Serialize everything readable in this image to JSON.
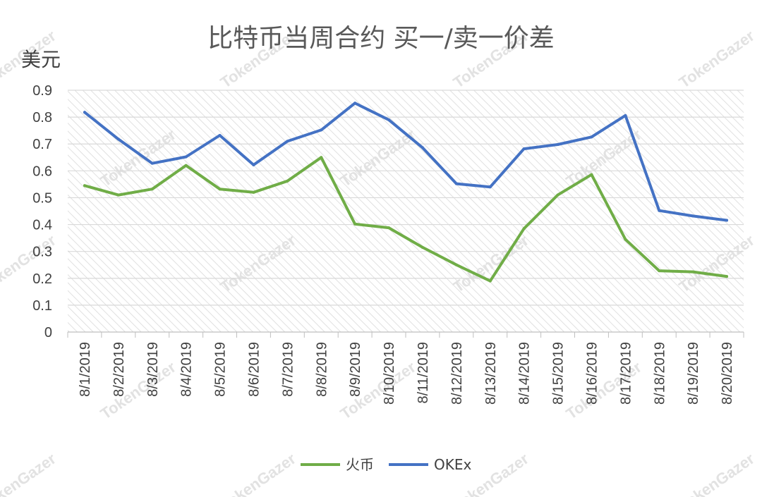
{
  "watermark": "TokenGazer",
  "chart_data": {
    "type": "line",
    "title": "比特币当周合约 买一/卖一价差",
    "ylabel": "美元",
    "xlabel": "",
    "ylim": [
      0,
      0.9
    ],
    "yticks": [
      "0",
      "0.1",
      "0.2",
      "0.3",
      "0.4",
      "0.5",
      "0.6",
      "0.7",
      "0.8",
      "0.9"
    ],
    "grid": true,
    "legend_position": "bottom",
    "categories": [
      "8/1/2019",
      "8/2/2019",
      "8/3/2019",
      "8/4/2019",
      "8/5/2019",
      "8/6/2019",
      "8/7/2019",
      "8/8/2019",
      "8/9/2019",
      "8/10/2019",
      "8/11/2019",
      "8/12/2019",
      "8/13/2019",
      "8/14/2019",
      "8/15/2019",
      "8/16/2019",
      "8/17/2019",
      "8/18/2019",
      "8/19/2019",
      "8/20/2019"
    ],
    "series": [
      {
        "name": "火币",
        "color": "#70AD47",
        "values": [
          0.545,
          0.51,
          0.532,
          0.62,
          0.532,
          0.52,
          0.562,
          0.65,
          0.402,
          0.388,
          0.315,
          0.25,
          0.19,
          0.385,
          0.51,
          0.586,
          0.345,
          0.228,
          0.224,
          0.207
        ]
      },
      {
        "name": "OKEx",
        "color": "#4472C4",
        "values": [
          0.818,
          0.718,
          0.628,
          0.652,
          0.732,
          0.622,
          0.71,
          0.752,
          0.852,
          0.79,
          0.686,
          0.552,
          0.54,
          0.682,
          0.698,
          0.726,
          0.806,
          0.452,
          0.432,
          0.416
        ]
      }
    ]
  }
}
